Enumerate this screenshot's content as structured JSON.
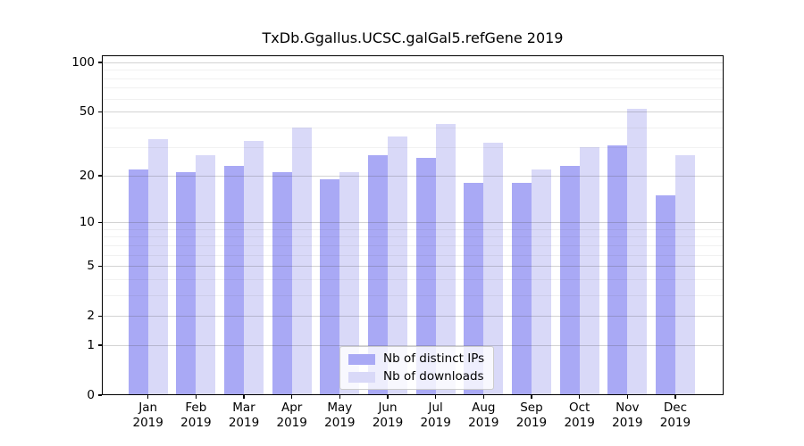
{
  "figure": {
    "background": "#ffffff",
    "title": "TxDb.Ggallus.UCSC.galGal5.refGene 2019"
  },
  "chart_data": {
    "type": "bar",
    "title": "TxDb.Ggallus.UCSC.galGal5.refGene 2019",
    "categories": [
      "Jan",
      "Feb",
      "Mar",
      "Apr",
      "May",
      "Jun",
      "Jul",
      "Aug",
      "Sep",
      "Oct",
      "Nov",
      "Dec"
    ],
    "category_year": "2019",
    "series": [
      {
        "name": "Nb of distinct IPs",
        "color": "#a9a9f5",
        "values": [
          22,
          21,
          23,
          21,
          19,
          27,
          26,
          18,
          18,
          23,
          31,
          15
        ]
      },
      {
        "name": "Nb of downloads",
        "color": "#d9d9f8",
        "values": [
          34,
          27,
          33,
          40,
          21,
          35,
          42,
          32,
          22,
          30,
          52,
          27
        ]
      }
    ],
    "yscale": "log1p",
    "y_major_ticks": [
      0,
      1,
      2,
      5,
      10,
      20,
      50,
      100
    ],
    "y_minor_ticks": [
      3,
      4,
      6,
      7,
      8,
      9,
      30,
      40,
      60,
      70,
      80,
      90
    ],
    "ylim": [
      0,
      110
    ],
    "xlabel": "",
    "ylabel": "",
    "grid": "horizontal",
    "legend_position": "lower-center"
  },
  "legend": {
    "items": [
      {
        "label": "Nb of distinct IPs"
      },
      {
        "label": "Nb of downloads"
      }
    ]
  }
}
